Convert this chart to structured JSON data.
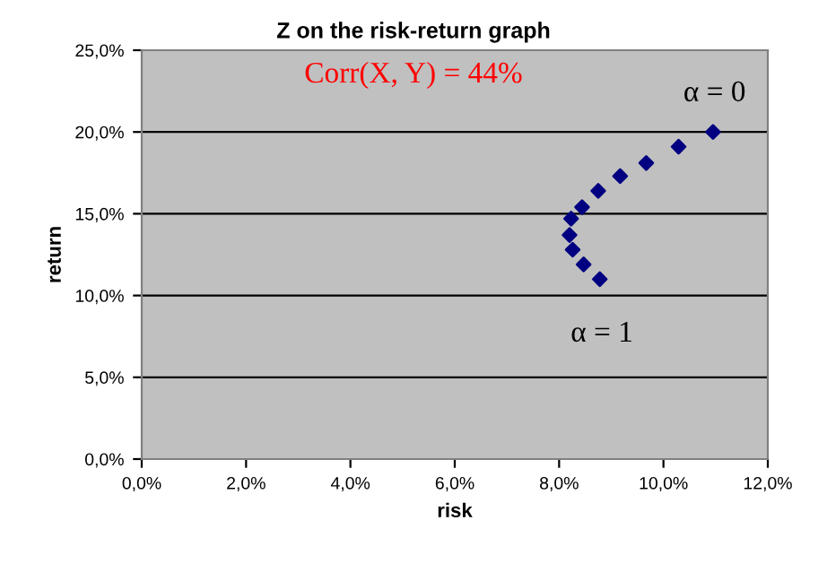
{
  "chart_data": {
    "type": "scatter",
    "title": "Z on the risk-return graph",
    "subtitle": "Corr(X, Y) = 44%",
    "xlabel": "risk",
    "ylabel": "return",
    "x": [
      10.95,
      10.29,
      9.67,
      9.17,
      8.75,
      8.44,
      8.23,
      8.2,
      8.26,
      8.47,
      8.78
    ],
    "series": [
      {
        "color": "#000080",
        "values": [
          20.0,
          19.1,
          18.1,
          17.3,
          16.4,
          15.4,
          14.7,
          13.7,
          12.8,
          11.9,
          11.0
        ]
      }
    ],
    "marker": "diamond",
    "grid": "y",
    "legend": false,
    "xlim": [
      0,
      12
    ],
    "ylim": [
      0,
      25
    ],
    "xticks": [
      {
        "value": 0,
        "label": "0,0%"
      },
      {
        "value": 2,
        "label": "2,0%"
      },
      {
        "value": 4,
        "label": "4,0%"
      },
      {
        "value": 6,
        "label": "6,0%"
      },
      {
        "value": 8,
        "label": "8,0%"
      },
      {
        "value": 10,
        "label": "10,0%"
      },
      {
        "value": 12,
        "label": "12,0%"
      }
    ],
    "yticks": [
      {
        "value": 0,
        "label": "0,0%"
      },
      {
        "value": 5,
        "label": "5,0%"
      },
      {
        "value": 10,
        "label": "10,0%"
      },
      {
        "value": 15,
        "label": "15,0%"
      },
      {
        "value": 20,
        "label": "20,0%"
      },
      {
        "value": 25,
        "label": "25,0%"
      }
    ],
    "annotations": [
      "α = 0",
      "α = 1"
    ]
  }
}
